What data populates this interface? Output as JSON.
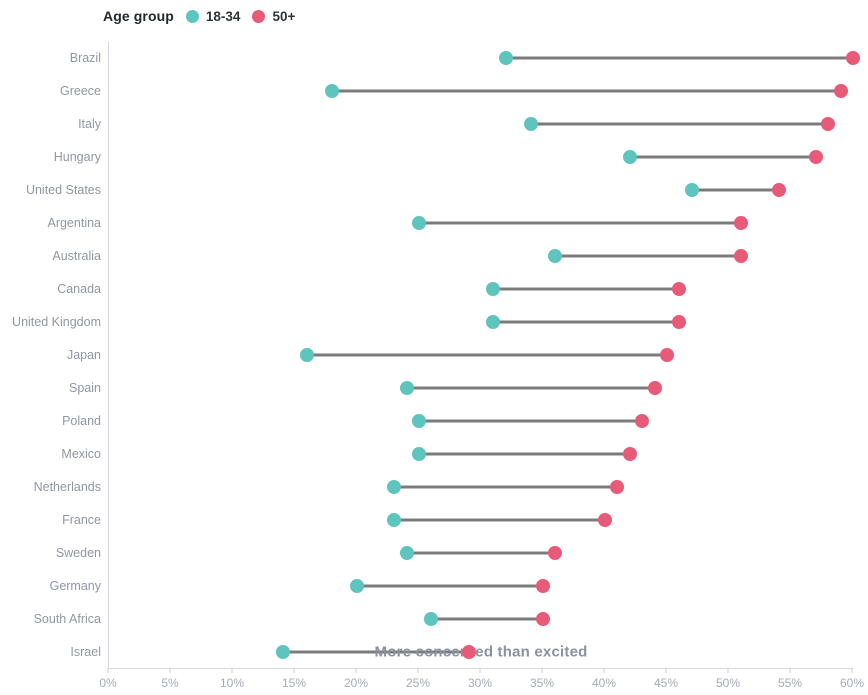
{
  "legend": {
    "title": "Age group",
    "items": [
      {
        "label": "18-34",
        "color": "#5ec4be"
      },
      {
        "label": "50+",
        "color": "#e75b78"
      }
    ]
  },
  "annotation": {
    "text": "More concerned than excited",
    "x_value": 30,
    "category": "Israel"
  },
  "colors": {
    "teal": "#5ec4be",
    "pink": "#e75b78",
    "connector": "#7b7b7b",
    "axis_line": "#d7d9df",
    "tick_label": "#a6abb8",
    "category_label": "#9196a4"
  },
  "chart_data": {
    "type": "dumbbell",
    "title": "",
    "xlabel": "",
    "ylabel": "",
    "xlim": [
      0,
      60
    ],
    "x_tick_step": 5,
    "x_tick_suffix": "%",
    "grid": false,
    "legend_position": "top",
    "categories": [
      "Brazil",
      "Greece",
      "Italy",
      "Hungary",
      "United States",
      "Argentina",
      "Australia",
      "Canada",
      "United Kingdom",
      "Japan",
      "Spain",
      "Poland",
      "Mexico",
      "Netherlands",
      "France",
      "Sweden",
      "Germany",
      "South Africa",
      "Israel"
    ],
    "series": [
      {
        "name": "18-34",
        "color": "#5ec4be",
        "values": [
          32,
          18,
          34,
          42,
          47,
          25,
          36,
          31,
          31,
          16,
          24,
          25,
          25,
          23,
          23,
          24,
          20,
          26,
          14
        ]
      },
      {
        "name": "50+",
        "color": "#e75b78",
        "values": [
          60,
          59,
          58,
          57,
          54,
          51,
          51,
          46,
          46,
          45,
          44,
          43,
          42,
          41,
          40,
          36,
          35,
          35,
          29
        ]
      }
    ]
  }
}
